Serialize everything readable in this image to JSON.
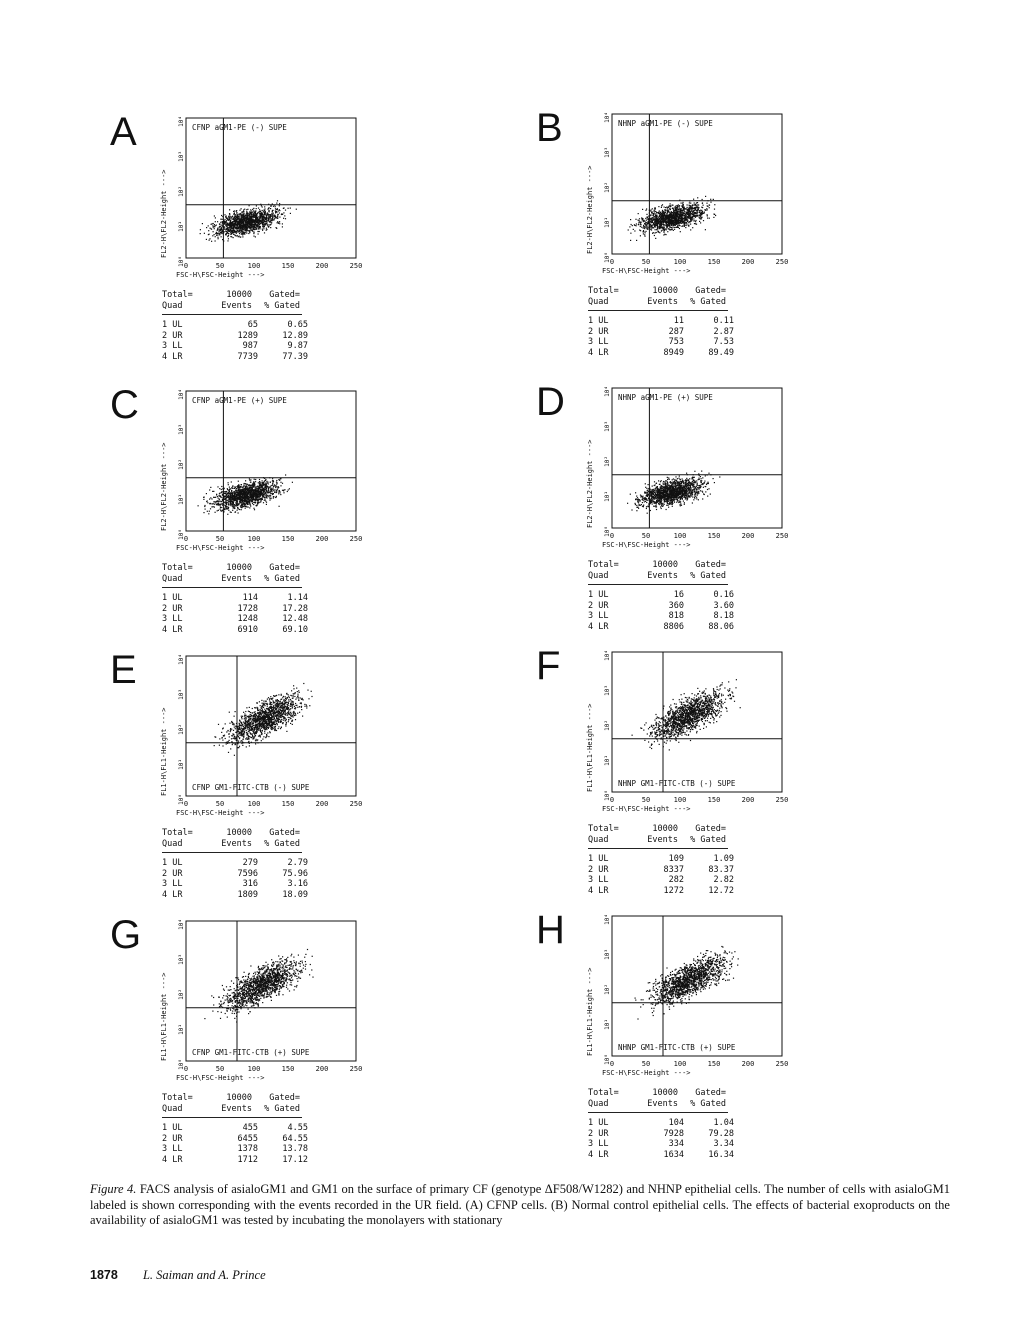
{
  "panels": [
    {
      "letter": "A",
      "label": "CFNP aGM1-PE (-) SUPE",
      "ylabel": "FL2-H\\FL2-Height --->",
      "xlabel": "FSC-H\\FSC-Height --->",
      "total_label": "Total=",
      "total": "10000",
      "gated_label": "Gated=",
      "col_quad": "Quad",
      "col_events": "Events",
      "col_gated": "% Gated",
      "rows": [
        [
          "1 UL",
          "65",
          "0.65"
        ],
        [
          "2 UR",
          "1289",
          "12.89"
        ],
        [
          "3 LL",
          "987",
          "9.87"
        ],
        [
          "4 LR",
          "7739",
          "77.39"
        ]
      ]
    },
    {
      "letter": "B",
      "label": "NHNP aGM1-PE (-) SUPE",
      "ylabel": "FL2-H\\FL2-Height --->",
      "xlabel": "FSC-H\\FSC-Height --->",
      "total_label": "Total=",
      "total": "10000",
      "gated_label": "Gated=",
      "col_quad": "Quad",
      "col_events": "Events",
      "col_gated": "% Gated",
      "rows": [
        [
          "1 UL",
          "11",
          "0.11"
        ],
        [
          "2 UR",
          "287",
          "2.87"
        ],
        [
          "3 LL",
          "753",
          "7.53"
        ],
        [
          "4 LR",
          "8949",
          "89.49"
        ]
      ]
    },
    {
      "letter": "C",
      "label": "CFNP aGM1-PE (+) SUPE",
      "ylabel": "FL2-H\\FL2-Height --->",
      "xlabel": "FSC-H\\FSC-Height --->",
      "total_label": "Total=",
      "total": "10000",
      "gated_label": "Gated=",
      "col_quad": "Quad",
      "col_events": "Events",
      "col_gated": "% Gated",
      "rows": [
        [
          "1 UL",
          "114",
          "1.14"
        ],
        [
          "2 UR",
          "1728",
          "17.28"
        ],
        [
          "3 LL",
          "1248",
          "12.48"
        ],
        [
          "4 LR",
          "6910",
          "69.10"
        ]
      ]
    },
    {
      "letter": "D",
      "label": "NHNP aGM1-PE (+) SUPE",
      "ylabel": "FL2-H\\FL2-Height --->",
      "xlabel": "FSC-H\\FSC-Height --->",
      "total_label": "Total=",
      "total": "10000",
      "gated_label": "Gated=",
      "col_quad": "Quad",
      "col_events": "Events",
      "col_gated": "% Gated",
      "rows": [
        [
          "1 UL",
          "16",
          "0.16"
        ],
        [
          "2 UR",
          "360",
          "3.60"
        ],
        [
          "3 LL",
          "818",
          "8.18"
        ],
        [
          "4 LR",
          "8806",
          "88.06"
        ]
      ]
    },
    {
      "letter": "E",
      "label": "CFNP GM1-FITC-CTB (-) SUPE",
      "ylabel": "FL1-H\\FL1-Height --->",
      "xlabel": "FSC-H\\FSC-Height --->",
      "total_label": "Total=",
      "total": "10000",
      "gated_label": "Gated=",
      "col_quad": "Quad",
      "col_events": "Events",
      "col_gated": "% Gated",
      "rows": [
        [
          "1 UL",
          "279",
          "2.79"
        ],
        [
          "2 UR",
          "7596",
          "75.96"
        ],
        [
          "3 LL",
          "316",
          "3.16"
        ],
        [
          "4 LR",
          "1809",
          "18.09"
        ]
      ]
    },
    {
      "letter": "F",
      "label": "NHNP GM1-FITC-CTB (-) SUPE",
      "ylabel": "FL1-H\\FL1-Height --->",
      "xlabel": "FSC-H\\FSC-Height --->",
      "total_label": "Total=",
      "total": "10000",
      "gated_label": "Gated=",
      "col_quad": "Quad",
      "col_events": "Events",
      "col_gated": "% Gated",
      "rows": [
        [
          "1 UL",
          "109",
          "1.09"
        ],
        [
          "2 UR",
          "8337",
          "83.37"
        ],
        [
          "3 LL",
          "282",
          "2.82"
        ],
        [
          "4 LR",
          "1272",
          "12.72"
        ]
      ]
    },
    {
      "letter": "G",
      "label": "CFNP GM1-FITC-CTB (+) SUPE",
      "ylabel": "FL1-H\\FL1-Height --->",
      "xlabel": "FSC-H\\FSC-Height --->",
      "total_label": "Total=",
      "total": "10000",
      "gated_label": "Gated=",
      "col_quad": "Quad",
      "col_events": "Events",
      "col_gated": "% Gated",
      "rows": [
        [
          "1 UL",
          "455",
          "4.55"
        ],
        [
          "2 UR",
          "6455",
          "64.55"
        ],
        [
          "3 LL",
          "1378",
          "13.78"
        ],
        [
          "4 LR",
          "1712",
          "17.12"
        ]
      ]
    },
    {
      "letter": "H",
      "label": "NHNP GM1-FITC-CTB (+) SUPE",
      "ylabel": "FL1-H\\FL1-Height --->",
      "xlabel": "FSC-H\\FSC-Height --->",
      "total_label": "Total=",
      "total": "10000",
      "gated_label": "Gated=",
      "col_quad": "Quad",
      "col_events": "Events",
      "col_gated": "% Gated",
      "rows": [
        [
          "1 UL",
          "104",
          "1.04"
        ],
        [
          "2 UR",
          "7928",
          "79.28"
        ],
        [
          "3 LL",
          "334",
          "3.34"
        ],
        [
          "4 LR",
          "1634",
          "16.34"
        ]
      ]
    }
  ],
  "x_ticks": [
    "0",
    "50",
    "100",
    "150",
    "200",
    "250"
  ],
  "y_ticks": [
    "10⁰",
    "10¹",
    "10²",
    "10³",
    "10⁴"
  ],
  "caption": {
    "label": "Figure 4.",
    "text": "FACS analysis of asialoGM1 and GM1 on the surface of primary CF (genotype ΔF508/W1282) and NHNP epithelial cells. The number of cells with asialoGM1 labeled is shown corresponding with the events recorded in the UR field. (A) CFNP cells. (B) Normal control epithelial cells. The effects of bacterial exoproducts on the availability of asialoGM1 was tested by incubating the monolayers with stationary"
  },
  "footer": {
    "page_number": "1878",
    "authors": "L. Saiman and A. Prince"
  }
}
